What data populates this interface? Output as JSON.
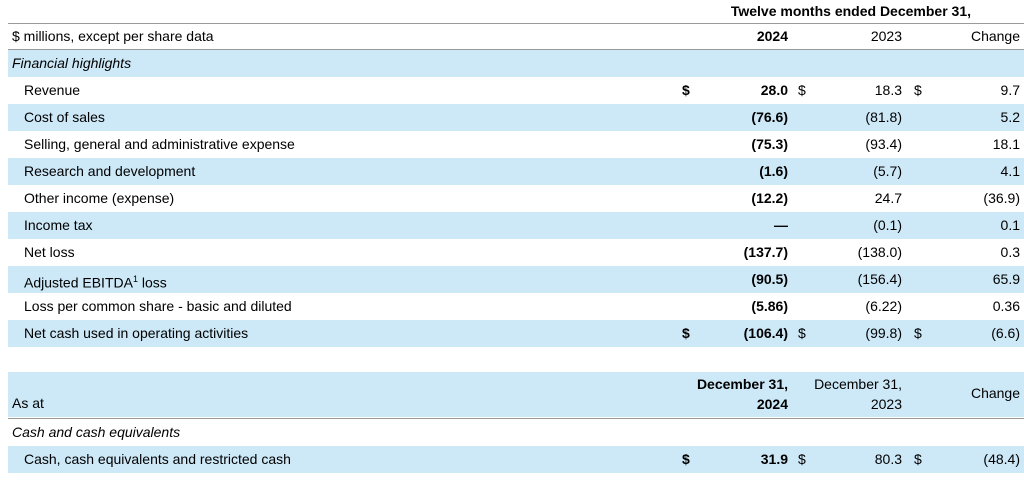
{
  "table1": {
    "period_header": "Twelve months ended December 31,",
    "header": {
      "label": "$ millions, except per share data",
      "col_2024": "2024",
      "col_2023": "2023",
      "col_change": "Change"
    },
    "section": "Financial highlights",
    "rows": [
      {
        "label": "Revenue",
        "cur": "$",
        "v2024": "28.0",
        "v2023": "18.3",
        "change": "9.7"
      },
      {
        "label": "Cost of sales",
        "cur": "",
        "v2024": "(76.6)",
        "v2023": "(81.8)",
        "change": "5.2"
      },
      {
        "label": "Selling, general and administrative expense",
        "cur": "",
        "v2024": "(75.3)",
        "v2023": "(93.4)",
        "change": "18.1"
      },
      {
        "label": "Research and development",
        "cur": "",
        "v2024": "(1.6)",
        "v2023": "(5.7)",
        "change": "4.1"
      },
      {
        "label": "Other income (expense)",
        "cur": "",
        "v2024": "(12.2)",
        "v2023": "24.7",
        "change": "(36.9)"
      },
      {
        "label": "Income tax",
        "cur": "",
        "v2024": "—",
        "v2023": "(0.1)",
        "change": "0.1"
      },
      {
        "label": "Net loss",
        "cur": "",
        "v2024": "(137.7)",
        "v2023": "(138.0)",
        "change": "0.3"
      },
      {
        "label": "Adjusted EBITDA",
        "sup": "1",
        "label_after": " loss",
        "cur": "",
        "v2024": "(90.5)",
        "v2023": "(156.4)",
        "change": "65.9"
      },
      {
        "label": "Loss per common share - basic and diluted",
        "cur": "",
        "v2024": "(5.86)",
        "v2023": "(6.22)",
        "change": "0.36"
      },
      {
        "label": "Net cash used in operating activities",
        "cur": "$",
        "v2024": "(106.4)",
        "v2023": "(99.8)",
        "change": "(6.6)"
      }
    ]
  },
  "table2": {
    "header": {
      "label": "As at",
      "col_2024_line1": "December 31,",
      "col_2024_line2": "2024",
      "col_2023_line1": "December 31,",
      "col_2023_line2": "2023",
      "col_change": "Change"
    },
    "section": "Cash and cash equivalents",
    "rows": [
      {
        "label": "Cash, cash equivalents and restricted cash",
        "cur": "$",
        "v2024": "31.9",
        "v2023": "80.3",
        "change": "(48.4)"
      }
    ]
  },
  "colors": {
    "band": "#cde8f7",
    "rule": "#9a9a9a"
  }
}
